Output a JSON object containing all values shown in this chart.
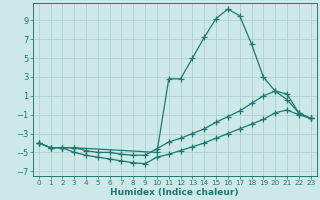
{
  "xlabel": "Humidex (Indice chaleur)",
  "bg_color": "#cce8e8",
  "grid_color": "#aacccc",
  "line_color": "#1f7a6e",
  "xlim": [
    -0.5,
    23.5
  ],
  "ylim": [
    -7.5,
    10.8
  ],
  "yticks": [
    -7,
    -5,
    -3,
    -1,
    1,
    3,
    5,
    7,
    9
  ],
  "xticks": [
    0,
    1,
    2,
    3,
    4,
    5,
    6,
    7,
    8,
    9,
    10,
    11,
    12,
    13,
    14,
    15,
    16,
    17,
    18,
    19,
    20,
    21,
    22,
    23
  ],
  "lines": [
    {
      "x": [
        0,
        1,
        2,
        3,
        10,
        11,
        12,
        13,
        14,
        15,
        16,
        17,
        18,
        19,
        20,
        21,
        22,
        23
      ],
      "y": [
        -4.0,
        -4.5,
        -4.5,
        -4.5,
        -5.0,
        2.8,
        2.8,
        5.0,
        7.2,
        9.2,
        10.2,
        9.5,
        6.5,
        3.0,
        1.5,
        0.6,
        -0.8,
        -1.4
      ]
    },
    {
      "x": [
        0,
        1,
        2,
        3,
        4,
        5,
        6,
        7,
        8,
        9,
        10,
        11,
        12,
        13,
        14,
        15,
        16,
        17,
        18,
        19,
        20,
        21,
        22,
        23
      ],
      "y": [
        -4.0,
        -4.5,
        -4.5,
        -4.5,
        -4.8,
        -5.0,
        -5.0,
        -5.2,
        -5.3,
        -5.3,
        -4.6,
        -3.9,
        -3.5,
        -3.0,
        -2.5,
        -1.8,
        -1.2,
        -0.6,
        0.2,
        1.0,
        1.5,
        1.2,
        -0.8,
        -1.4
      ]
    },
    {
      "x": [
        0,
        1,
        2,
        3,
        4,
        5,
        6,
        7,
        8,
        9,
        10,
        11,
        12,
        13,
        14,
        15,
        16,
        17,
        18,
        19,
        20,
        21,
        22,
        23
      ],
      "y": [
        -4.0,
        -4.5,
        -4.5,
        -5.0,
        -5.3,
        -5.5,
        -5.7,
        -5.9,
        -6.1,
        -6.2,
        -5.5,
        -5.2,
        -4.8,
        -4.4,
        -4.0,
        -3.5,
        -3.0,
        -2.5,
        -2.0,
        -1.5,
        -0.8,
        -0.5,
        -1.0,
        -1.4
      ]
    }
  ]
}
